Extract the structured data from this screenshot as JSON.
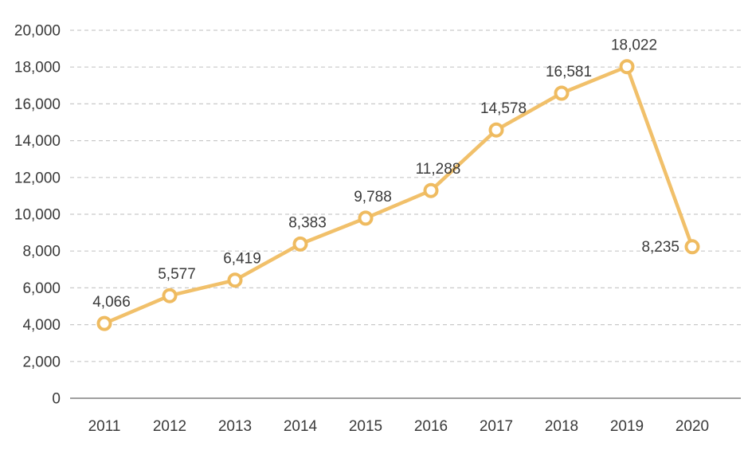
{
  "chart_data": {
    "type": "line",
    "title": "",
    "xlabel": "",
    "ylabel": "",
    "legend": "none",
    "grid": "horizontal-dashed",
    "categories": [
      "2011",
      "2012",
      "2013",
      "2014",
      "2015",
      "2016",
      "2017",
      "2018",
      "2019",
      "2020"
    ],
    "values": [
      4066,
      5577,
      6419,
      8383,
      9788,
      11288,
      14578,
      16581,
      18022,
      8235
    ],
    "value_labels": [
      "4,066",
      "5,577",
      "6,419",
      "8,383",
      "9,788",
      "11,288",
      "14,578",
      "16,581",
      "18,022",
      "8,235"
    ],
    "label_placements": [
      "above",
      "above",
      "above",
      "above",
      "above",
      "above",
      "above",
      "above",
      "above",
      "left"
    ],
    "ylim": [
      0,
      20000
    ],
    "y_ticks": [
      0,
      2000,
      4000,
      6000,
      8000,
      10000,
      12000,
      14000,
      16000,
      18000,
      20000
    ],
    "y_tick_labels": [
      "0",
      "2,000",
      "4,000",
      "6,000",
      "8,000",
      "10,000",
      "12,000",
      "14,000",
      "16,000",
      "18,000",
      "20,000"
    ],
    "colors": {
      "line": "#F1C06A",
      "marker_stroke": "#EFBB60",
      "marker_fill": "#FFFFFF",
      "grid": "#C9C9C9",
      "axis": "#A0A0A0",
      "text": "#3A3A3A"
    }
  }
}
